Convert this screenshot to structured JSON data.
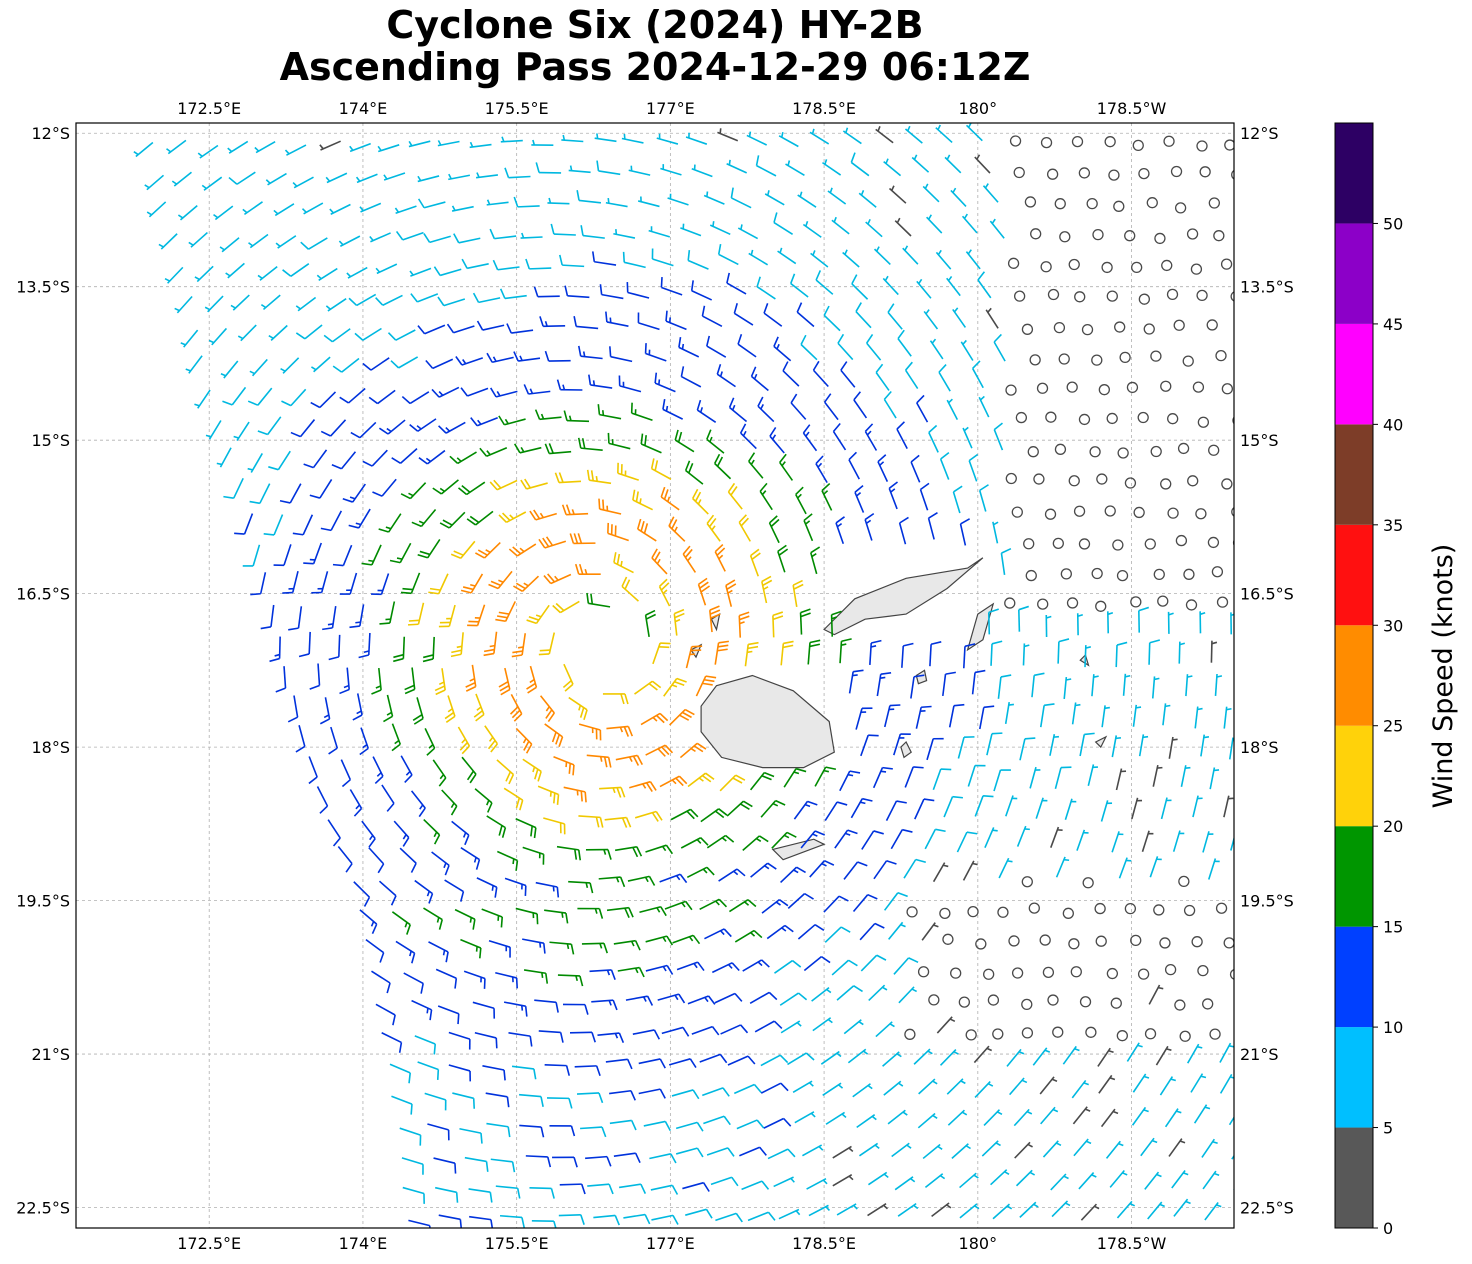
{
  "title": {
    "line1": "Cyclone Six (2024) HY-2B",
    "line2": "Ascending Pass 2024-12-29 06:12Z"
  },
  "map": {
    "lon_min": 171.2,
    "lon_max": 182.5,
    "lat_min": -22.7,
    "lat_max": -11.9,
    "gridline_style": "dashed-gray",
    "land_fill": "#e8e8e8",
    "coast_color": "#444444",
    "lon_ticks": [
      {
        "value": 172.5,
        "label": "172.5°E"
      },
      {
        "value": 174,
        "label": "174°E"
      },
      {
        "value": 175.5,
        "label": "175.5°E"
      },
      {
        "value": 177,
        "label": "177°E"
      },
      {
        "value": 178.5,
        "label": "178.5°E"
      },
      {
        "value": 180,
        "label": "180°"
      },
      {
        "value": 181.5,
        "label": "178.5°W"
      }
    ],
    "lat_ticks": [
      {
        "value": -12,
        "label": "12°S"
      },
      {
        "value": -13.5,
        "label": "13.5°S"
      },
      {
        "value": -15,
        "label": "15°S"
      },
      {
        "value": -16.5,
        "label": "16.5°S"
      },
      {
        "value": -18,
        "label": "18°S"
      },
      {
        "value": -19.5,
        "label": "19.5°S"
      },
      {
        "value": -21,
        "label": "21°S"
      },
      {
        "value": -22.5,
        "label": "22.5°S"
      }
    ],
    "swath": {
      "west_edge": [
        [
          -12.05,
          171.9
        ],
        [
          -14.6,
          172.5
        ],
        [
          -15.5,
          172.8
        ],
        [
          -18.0,
          173.4
        ],
        [
          -19.5,
          173.9
        ],
        [
          -21.0,
          174.2
        ],
        [
          -22.7,
          174.4
        ]
      ],
      "east_edge": [
        [
          -12.05,
          182.5
        ],
        [
          -22.7,
          182.5
        ]
      ]
    },
    "cyclone_center": {
      "lat": -17.0,
      "lon": 176.4
    },
    "islands": [
      {
        "name": "viti-levu",
        "points": [
          [
            -17.4,
            177.45
          ],
          [
            -17.3,
            177.8
          ],
          [
            -17.45,
            178.2
          ],
          [
            -17.75,
            178.55
          ],
          [
            -18.05,
            178.6
          ],
          [
            -18.2,
            178.3
          ],
          [
            -18.2,
            177.9
          ],
          [
            -18.1,
            177.5
          ],
          [
            -17.85,
            177.3
          ],
          [
            -17.6,
            177.3
          ]
        ]
      },
      {
        "name": "vanua-levu",
        "points": [
          [
            -16.85,
            178.5
          ],
          [
            -16.55,
            178.8
          ],
          [
            -16.35,
            179.3
          ],
          [
            -16.25,
            179.9
          ],
          [
            -16.15,
            180.05
          ],
          [
            -16.45,
            179.7
          ],
          [
            -16.7,
            179.3
          ],
          [
            -16.75,
            178.9
          ],
          [
            -16.9,
            178.6
          ]
        ]
      },
      {
        "name": "taveuni",
        "points": [
          [
            -16.7,
            180.0
          ],
          [
            -16.6,
            180.15
          ],
          [
            -16.95,
            180.05
          ],
          [
            -17.05,
            179.9
          ]
        ]
      },
      {
        "name": "kadavu",
        "points": [
          [
            -19.0,
            178.0
          ],
          [
            -18.9,
            178.4
          ],
          [
            -18.95,
            178.5
          ],
          [
            -19.1,
            178.1
          ]
        ]
      },
      {
        "name": "gau",
        "points": [
          [
            -18.0,
            179.25
          ],
          [
            -17.95,
            179.3
          ],
          [
            -18.05,
            179.35
          ],
          [
            -18.1,
            179.28
          ]
        ]
      },
      {
        "name": "koro",
        "points": [
          [
            -17.3,
            179.4
          ],
          [
            -17.25,
            179.48
          ],
          [
            -17.35,
            179.5
          ],
          [
            -17.38,
            179.42
          ]
        ]
      },
      {
        "name": "yasawa-1",
        "points": [
          [
            -16.75,
            177.4
          ],
          [
            -16.7,
            177.48
          ],
          [
            -16.85,
            177.45
          ]
        ]
      },
      {
        "name": "yasawa-2",
        "points": [
          [
            -17.05,
            177.2
          ],
          [
            -17.0,
            177.3
          ],
          [
            -17.12,
            177.25
          ]
        ]
      },
      {
        "name": "lau-1",
        "points": [
          [
            -17.95,
            181.15
          ],
          [
            -17.9,
            181.25
          ],
          [
            -18.0,
            181.2
          ]
        ]
      },
      {
        "name": "lau-2",
        "points": [
          [
            -17.15,
            181.0
          ],
          [
            -17.1,
            181.05
          ],
          [
            -17.2,
            181.08
          ]
        ]
      }
    ]
  },
  "colorbar": {
    "label": "Wind Speed (knots)",
    "bounds": [
      0,
      5,
      10,
      15,
      20,
      25,
      30,
      35,
      40,
      45,
      50,
      55
    ],
    "tick_values": [
      0,
      5,
      10,
      15,
      20,
      25,
      30,
      35,
      40,
      45,
      50
    ],
    "tick_labels": [
      "0",
      "5",
      "10",
      "15",
      "20",
      "25",
      "30",
      "35",
      "40",
      "45",
      "50"
    ],
    "colors": [
      "#585858",
      "#00bfff",
      "#0040ff",
      "#009600",
      "#ffd20a",
      "#ff8c00",
      "#ff1010",
      "#7d3d28",
      "#ff00ff",
      "#8c00c8",
      "#2d0064"
    ]
  },
  "barb_colors": {
    "0-5": "#4a4a4a",
    "5-10": "#00b8e0",
    "10-15": "#0032dc",
    "15-20": "#008a00",
    "20-25": "#f0c800",
    "25-30": "#ff8800"
  }
}
